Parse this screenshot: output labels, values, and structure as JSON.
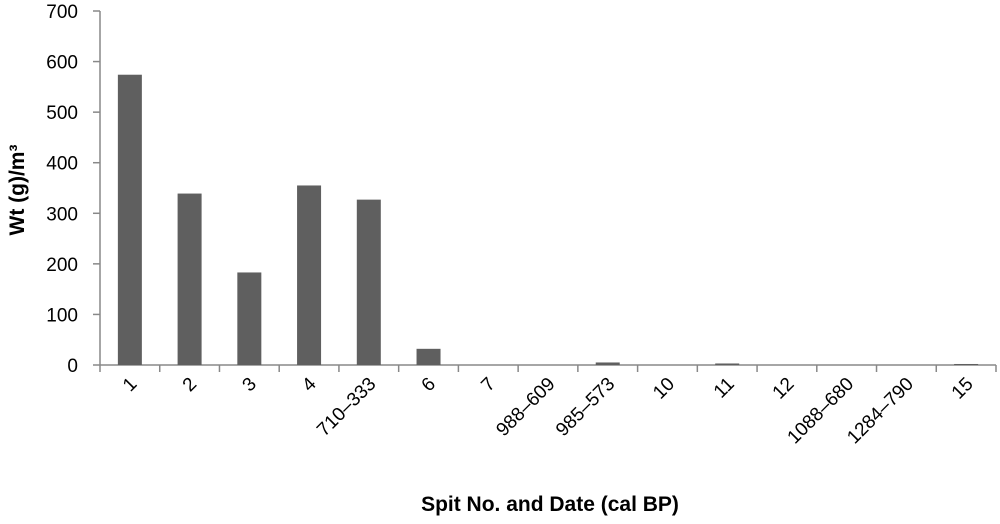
{
  "chart_data": {
    "type": "bar",
    "x_label": "Spit No. and Date (cal BP)",
    "y_label": "Wt (g)/m³",
    "categories": [
      "1",
      "2",
      "3",
      "4",
      "710–333",
      "6",
      "7",
      "988–609",
      "985–573",
      "10",
      "11",
      "12",
      "1088–680",
      "1284–790",
      "15"
    ],
    "values": [
      574,
      339,
      183,
      355,
      327,
      32,
      0,
      0,
      5,
      0,
      3,
      0,
      0,
      0,
      2
    ],
    "color": "#5f5f5f",
    "ylim": [
      0,
      700
    ],
    "yticks": [
      0,
      100,
      200,
      300,
      400,
      500,
      600,
      700
    ],
    "grid": false
  }
}
